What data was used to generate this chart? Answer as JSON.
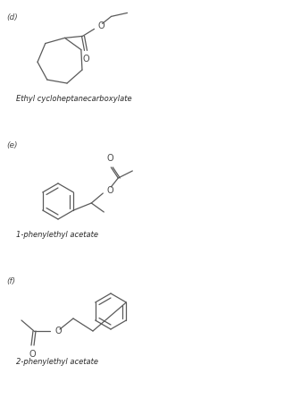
{
  "background": "#ffffff",
  "line_color": "#5a5a5a",
  "text_color": "#4a4a4a",
  "label_color": "#2a2a2a",
  "font_size_label": 6.0,
  "font_size_part": 6.5,
  "part_d_label": "(d)",
  "part_d_compound": "Ethyl cycloheptanecarboxylate",
  "part_e_label": "(e)",
  "part_e_compound": "1-phenylethyl acetate",
  "part_f_label": "(f)",
  "part_f_compound": "2-phenylethyl acetate"
}
